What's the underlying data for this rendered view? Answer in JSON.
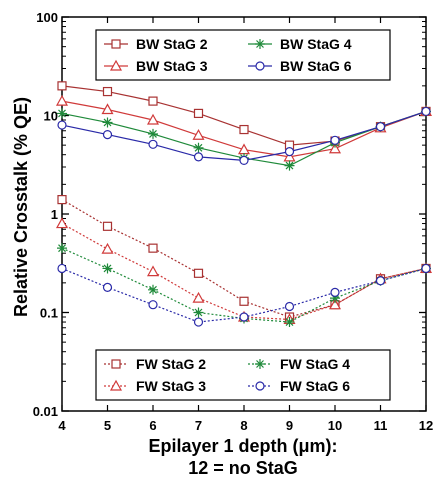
{
  "chart_data": {
    "type": "line",
    "xlabel_line1": "Epilayer 1 depth (μm):",
    "xlabel_line2": "12 = no StaG",
    "ylabel": "Relative Crosstalk (% QE)",
    "y_scale": "log",
    "ylim": [
      0.01,
      100
    ],
    "xlim": [
      4,
      12
    ],
    "x_ticks": [
      "4",
      "5",
      "6",
      "7",
      "8",
      "9",
      "10",
      "11",
      "12"
    ],
    "y_ticks": [
      "100",
      "10",
      "1",
      "0.1",
      "0.01"
    ],
    "grid": false,
    "legend_placement": [
      "top",
      "bottom"
    ],
    "series": [
      {
        "name": "BW StaG 2",
        "color": "#a83232",
        "marker": "square",
        "dash": "solid",
        "legend": "top",
        "x": [
          4,
          5,
          6,
          7,
          8,
          9,
          10,
          11,
          12
        ],
        "y": [
          20,
          17.5,
          14,
          10.5,
          7.2,
          5.0,
          5.5,
          7.7,
          11
        ]
      },
      {
        "name": "BW StaG 3",
        "color": "#d03a3a",
        "marker": "triangle",
        "dash": "solid",
        "legend": "top",
        "x": [
          4,
          5,
          6,
          7,
          8,
          9,
          10,
          11,
          12
        ],
        "y": [
          14,
          11.5,
          9,
          6.3,
          4.5,
          3.8,
          4.6,
          7.5,
          11
        ]
      },
      {
        "name": "BW StaG 4",
        "color": "#1f8a3a",
        "marker": "star",
        "dash": "solid",
        "legend": "top",
        "x": [
          4,
          5,
          6,
          7,
          8,
          9,
          10,
          11,
          12
        ],
        "y": [
          10.5,
          8.5,
          6.5,
          4.7,
          3.7,
          3.1,
          5.3,
          7.7,
          11
        ]
      },
      {
        "name": "BW StaG 6",
        "color": "#2a2aa8",
        "marker": "circle",
        "dash": "solid",
        "legend": "top",
        "x": [
          4,
          5,
          6,
          7,
          8,
          9,
          10,
          11,
          12
        ],
        "y": [
          8,
          6.4,
          5.1,
          3.8,
          3.5,
          4.3,
          5.6,
          7.7,
          11
        ]
      },
      {
        "name": "FW StaG 2",
        "color": "#a83232",
        "marker": "square",
        "dash": "dotted",
        "legend": "bottom",
        "x": [
          4,
          5,
          6,
          7,
          8,
          9,
          10,
          11,
          12
        ],
        "y": [
          1.4,
          0.75,
          0.45,
          0.25,
          0.13,
          0.09,
          0.12,
          0.22,
          0.28
        ]
      },
      {
        "name": "FW StaG 3",
        "color": "#d03a3a",
        "marker": "triangle",
        "dash": "dotted",
        "legend": "bottom",
        "x": [
          4,
          5,
          6,
          7,
          8,
          9,
          10,
          11,
          12
        ],
        "y": [
          0.8,
          0.44,
          0.26,
          0.14,
          0.09,
          0.085,
          0.12,
          0.22,
          0.28
        ]
      },
      {
        "name": "FW StaG 4",
        "color": "#1f8a3a",
        "marker": "star",
        "dash": "dotted",
        "legend": "bottom",
        "x": [
          4,
          5,
          6,
          7,
          8,
          9,
          10,
          11,
          12
        ],
        "y": [
          0.45,
          0.28,
          0.17,
          0.1,
          0.087,
          0.08,
          0.14,
          0.21,
          0.28
        ]
      },
      {
        "name": "FW StaG 6",
        "color": "#2a2aa8",
        "marker": "circle",
        "dash": "dotted",
        "legend": "bottom",
        "x": [
          4,
          5,
          6,
          7,
          8,
          9,
          10,
          11,
          12
        ],
        "y": [
          0.28,
          0.18,
          0.12,
          0.08,
          0.09,
          0.115,
          0.16,
          0.21,
          0.28
        ]
      }
    ]
  }
}
